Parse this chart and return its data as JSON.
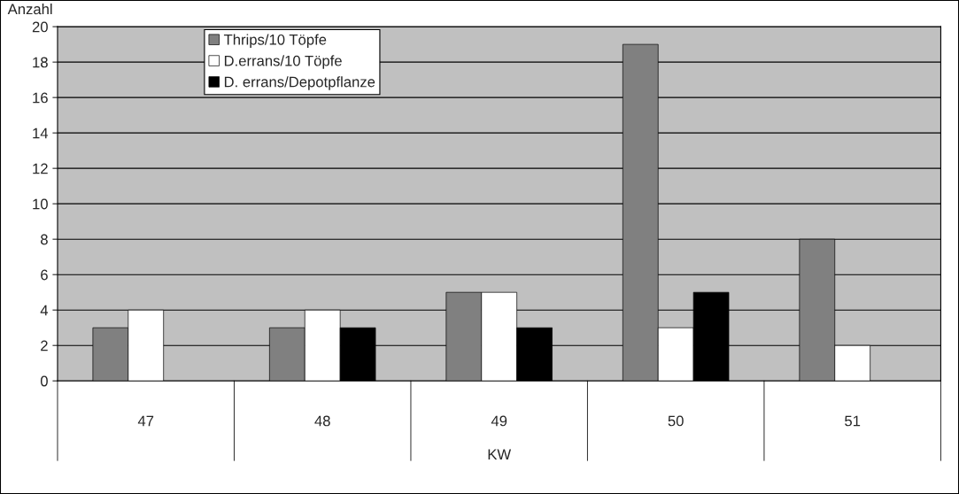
{
  "chart_data": {
    "type": "bar",
    "ylabel": "Anzahl",
    "xlabel": "KW",
    "categories": [
      "47",
      "48",
      "49",
      "50",
      "51"
    ],
    "series": [
      {
        "name": "Thrips/10 Töpfe",
        "color": "#808080",
        "values": [
          3,
          3,
          5,
          19,
          8
        ]
      },
      {
        "name": "D.errans/10 Töpfe",
        "color": "#ffffff",
        "values": [
          4,
          4,
          5,
          3,
          2
        ]
      },
      {
        "name": "D. errans/Depotpflanze",
        "color": "#000000",
        "values": [
          null,
          3,
          3,
          5,
          null
        ]
      }
    ],
    "ylim": [
      0,
      20
    ],
    "yticks": [
      0,
      2,
      4,
      6,
      8,
      10,
      12,
      14,
      16,
      18,
      20
    ],
    "grid": "y",
    "legend": "top left"
  }
}
